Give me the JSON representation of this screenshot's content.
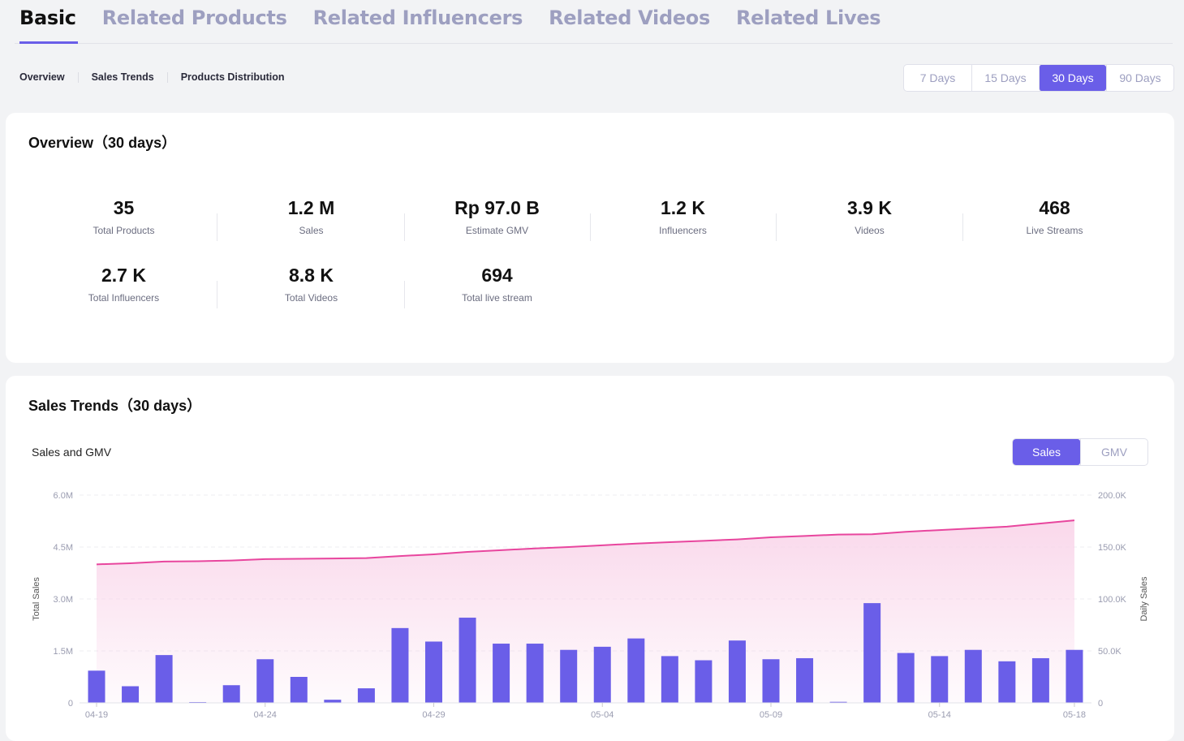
{
  "tabs": [
    "Basic",
    "Related Products",
    "Related Influencers",
    "Related Videos",
    "Related Lives"
  ],
  "anchors": [
    "Overview",
    "Sales Trends",
    "Products Distribution"
  ],
  "range": {
    "options": [
      "7 Days",
      "15 Days",
      "30 Days",
      "90 Days"
    ],
    "selected": "30 Days"
  },
  "overview": {
    "title": "Overview（30 days）",
    "stats": [
      {
        "value": "35",
        "label": "Total Products"
      },
      {
        "value": "1.2 M",
        "label": "Sales"
      },
      {
        "value": "Rp 97.0 B",
        "label": "Estimate GMV"
      },
      {
        "value": "1.2 K",
        "label": "Influencers"
      },
      {
        "value": "3.9 K",
        "label": "Videos"
      },
      {
        "value": "468",
        "label": "Live Streams"
      },
      {
        "value": "2.7 K",
        "label": "Total Influencers"
      },
      {
        "value": "8.8 K",
        "label": "Total Videos"
      },
      {
        "value": "694",
        "label": "Total live stream"
      }
    ]
  },
  "trends": {
    "title": "Sales Trends（30 days）",
    "subtitle": "Sales and GMV",
    "toggle": [
      "Sales",
      "GMV"
    ],
    "selected": "Sales"
  },
  "colors": {
    "accent": "#6a5ee8",
    "line": "#e8469e",
    "area": "#f9d6ea"
  },
  "chart_data": {
    "type": "bar+line",
    "x": [
      "04-19",
      "04-20",
      "04-21",
      "04-22",
      "04-23",
      "04-24",
      "04-25",
      "04-26",
      "04-27",
      "04-28",
      "04-29",
      "04-30",
      "05-01",
      "05-02",
      "05-03",
      "05-04",
      "05-05",
      "05-06",
      "05-07",
      "05-08",
      "05-09",
      "05-10",
      "05-11",
      "05-12",
      "05-13",
      "05-14",
      "05-15",
      "05-16",
      "05-17",
      "05-18"
    ],
    "x_ticks": [
      "04-19",
      "04-24",
      "04-29",
      "05-04",
      "05-09",
      "05-14",
      "05-18"
    ],
    "series": [
      {
        "name": "Daily Sales",
        "type": "bar",
        "axis": "right",
        "values": [
          31000,
          16000,
          46000,
          500,
          17000,
          42000,
          25000,
          3000,
          14000,
          72000,
          59000,
          82000,
          57000,
          57000,
          51000,
          54000,
          62000,
          45000,
          41000,
          60000,
          42000,
          43000,
          1000,
          96000,
          48000,
          45000,
          51000,
          40000,
          43000,
          51000
        ]
      },
      {
        "name": "Total Sales",
        "type": "area",
        "axis": "left",
        "values": [
          4000000,
          4030000,
          4080000,
          4090000,
          4110000,
          4150000,
          4160000,
          4170000,
          4180000,
          4240000,
          4290000,
          4360000,
          4410000,
          4460000,
          4500000,
          4550000,
          4600000,
          4640000,
          4680000,
          4720000,
          4780000,
          4820000,
          4860000,
          4870000,
          4940000,
          4990000,
          5040000,
          5090000,
          5180000,
          5270000
        ]
      }
    ],
    "left_axis": {
      "label": "Total Sales",
      "ticks": [
        "0",
        "1.5M",
        "3.0M",
        "4.5M",
        "6.0M"
      ],
      "range": [
        0,
        6000000
      ]
    },
    "right_axis": {
      "label": "Daily Sales",
      "ticks": [
        "0",
        "50.0K",
        "100.0K",
        "150.0K",
        "200.0K"
      ],
      "range": [
        0,
        200000
      ]
    },
    "grid": true
  }
}
